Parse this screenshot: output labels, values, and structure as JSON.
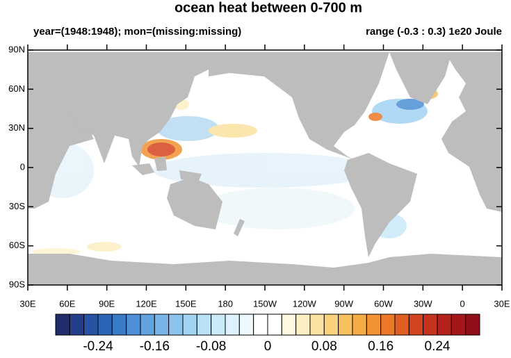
{
  "title": "ocean heat between 0-700 m",
  "left_subtitle": "year=(1948:1948); mon=(missing:missing)",
  "right_subtitle": "range (-0.3 : 0.3) 1e20 Joule",
  "lat_labels": [
    "90N",
    "60N",
    "30N",
    "0",
    "30S",
    "60S",
    "90S"
  ],
  "lon_labels": [
    "30E",
    "60E",
    "90E",
    "120E",
    "150E",
    "180",
    "150W",
    "120W",
    "90W",
    "60W",
    "30W",
    "0",
    "30E"
  ],
  "colorbar": {
    "lim": [
      -0.3,
      0.3
    ],
    "colors": [
      "#1f2d6b",
      "#233f8a",
      "#2653a3",
      "#2b66b6",
      "#3a7bc7",
      "#4d8fd4",
      "#62a2de",
      "#77b4e7",
      "#8cc4ee",
      "#a2d3f3",
      "#b8e0f6",
      "#cbeaf8",
      "#ddf2fa",
      "#ecf8fc",
      "#ffffff",
      "#ffffff",
      "#fff8e1",
      "#fdefc4",
      "#fbe2a0",
      "#f9d27e",
      "#f7c05f",
      "#f5ab46",
      "#f29234",
      "#ec7829",
      "#e15e22",
      "#d4451f",
      "#c5321e",
      "#b4221b",
      "#a3171a",
      "#8e1016"
    ],
    "labels": [
      -0.24,
      -0.16,
      -0.08,
      0,
      0.08,
      0.16,
      0.24
    ]
  }
}
